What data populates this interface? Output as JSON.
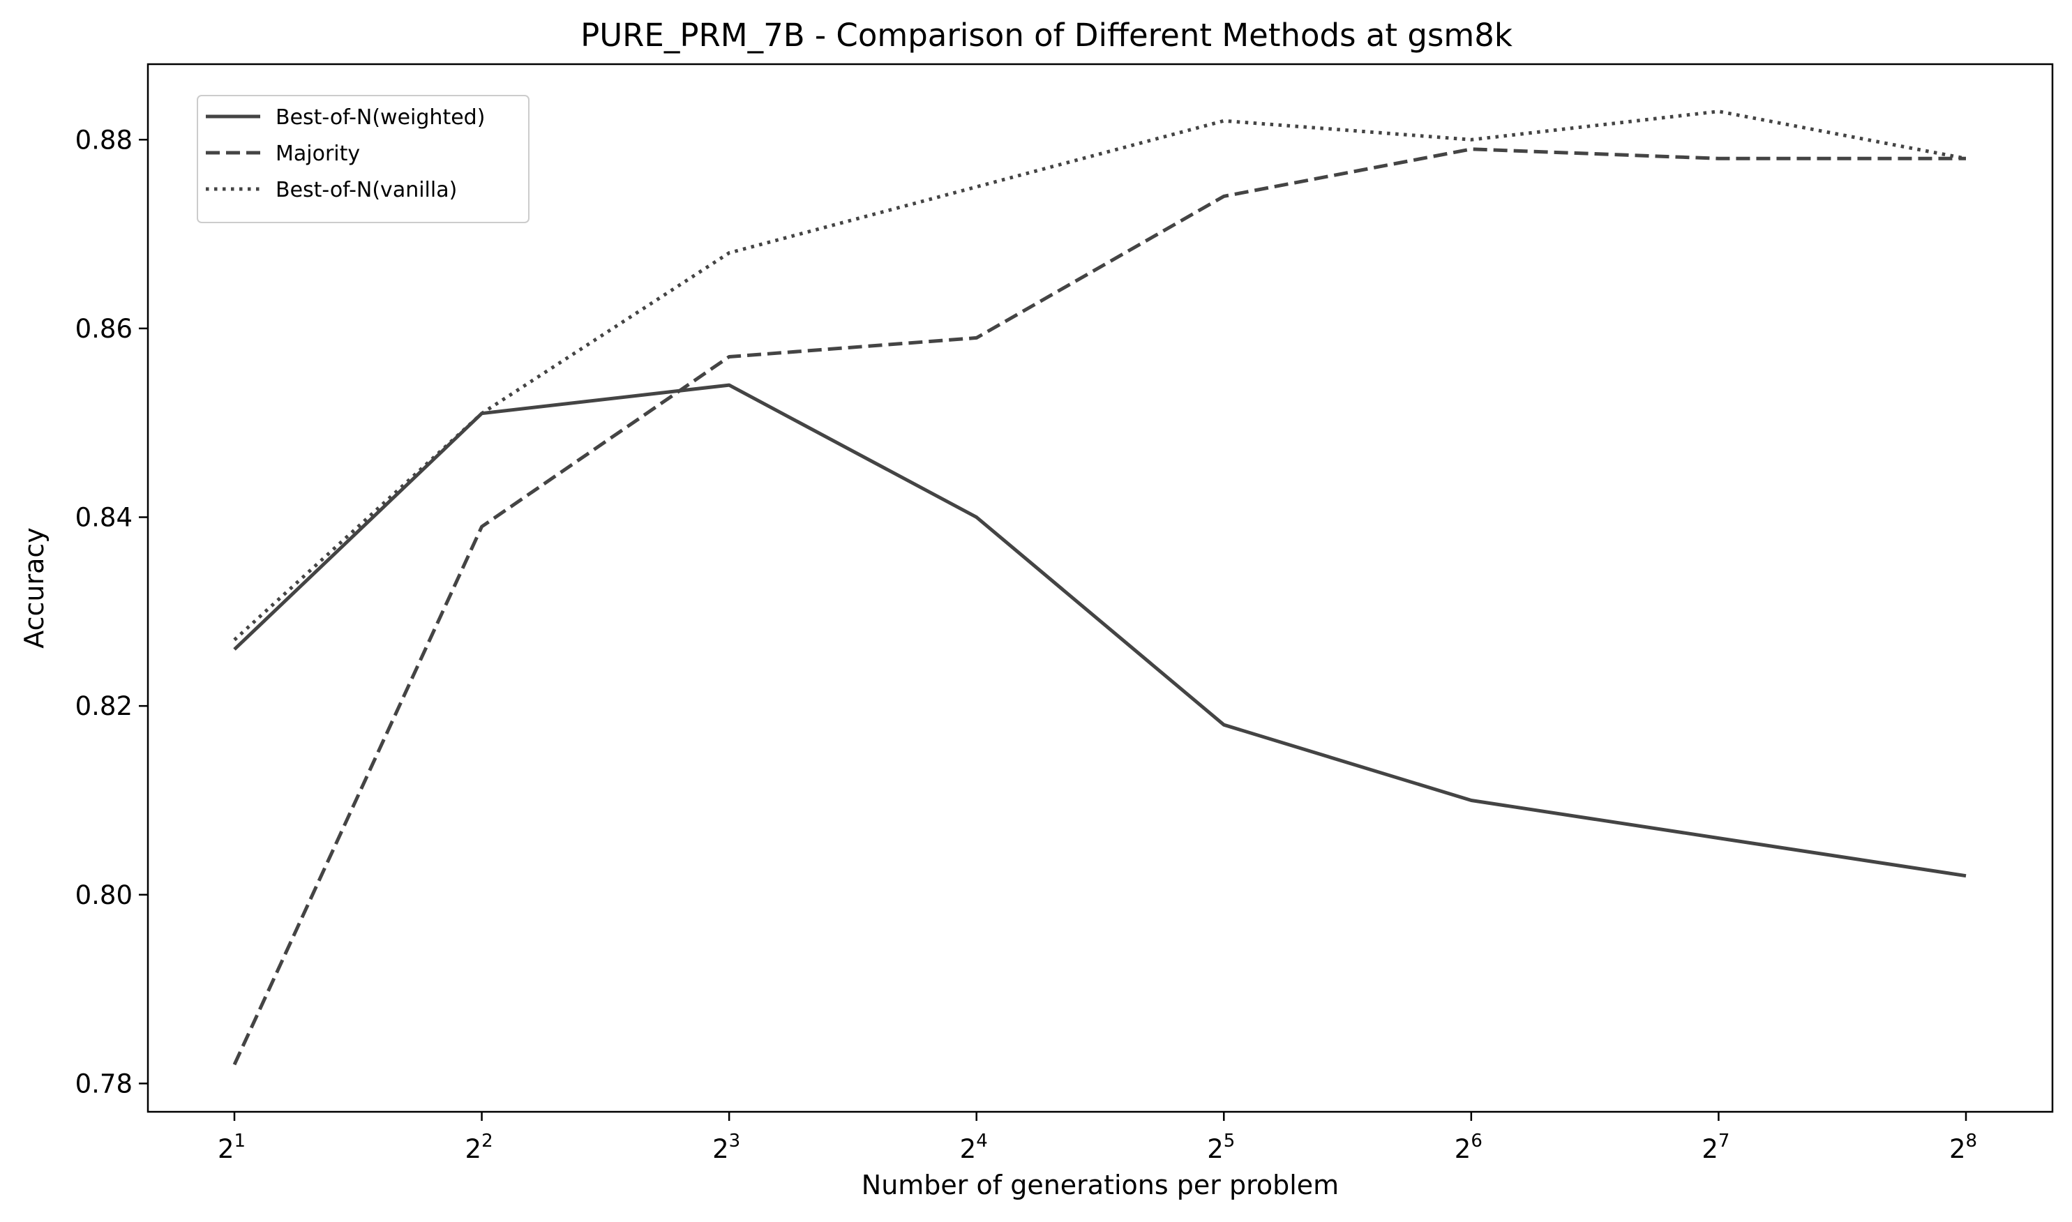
{
  "chart_data": {
    "type": "line",
    "title": "PURE_PRM_7B - Comparison of Different Methods at gsm8k",
    "xlabel": "Number of generations per problem",
    "ylabel": "Accuracy",
    "x": [
      2,
      4,
      8,
      16,
      32,
      64,
      128,
      256
    ],
    "x_scale": "log2",
    "x_ticks": [
      {
        "base": "2",
        "exp": "1"
      },
      {
        "base": "2",
        "exp": "2"
      },
      {
        "base": "2",
        "exp": "3"
      },
      {
        "base": "2",
        "exp": "4"
      },
      {
        "base": "2",
        "exp": "5"
      },
      {
        "base": "2",
        "exp": "6"
      },
      {
        "base": "2",
        "exp": "7"
      },
      {
        "base": "2",
        "exp": "8"
      }
    ],
    "y_ticks": [
      "0.78",
      "0.80",
      "0.82",
      "0.84",
      "0.86",
      "0.88"
    ],
    "ylim": [
      0.777,
      0.888
    ],
    "grid": false,
    "legend_position": "top-left",
    "series_color": "#444444",
    "series": [
      {
        "name": "Best-of-N(weighted)",
        "style": "solid",
        "values": [
          0.826,
          0.851,
          0.854,
          0.84,
          0.818,
          0.81,
          0.806,
          0.802
        ]
      },
      {
        "name": "Majority",
        "style": "dashed",
        "values": [
          0.782,
          0.839,
          0.857,
          0.859,
          0.874,
          0.879,
          0.878,
          0.878
        ]
      },
      {
        "name": "Best-of-N(vanilla)",
        "style": "dotted",
        "values": [
          0.827,
          0.851,
          0.868,
          0.875,
          0.882,
          0.88,
          0.883,
          0.878
        ]
      }
    ]
  }
}
